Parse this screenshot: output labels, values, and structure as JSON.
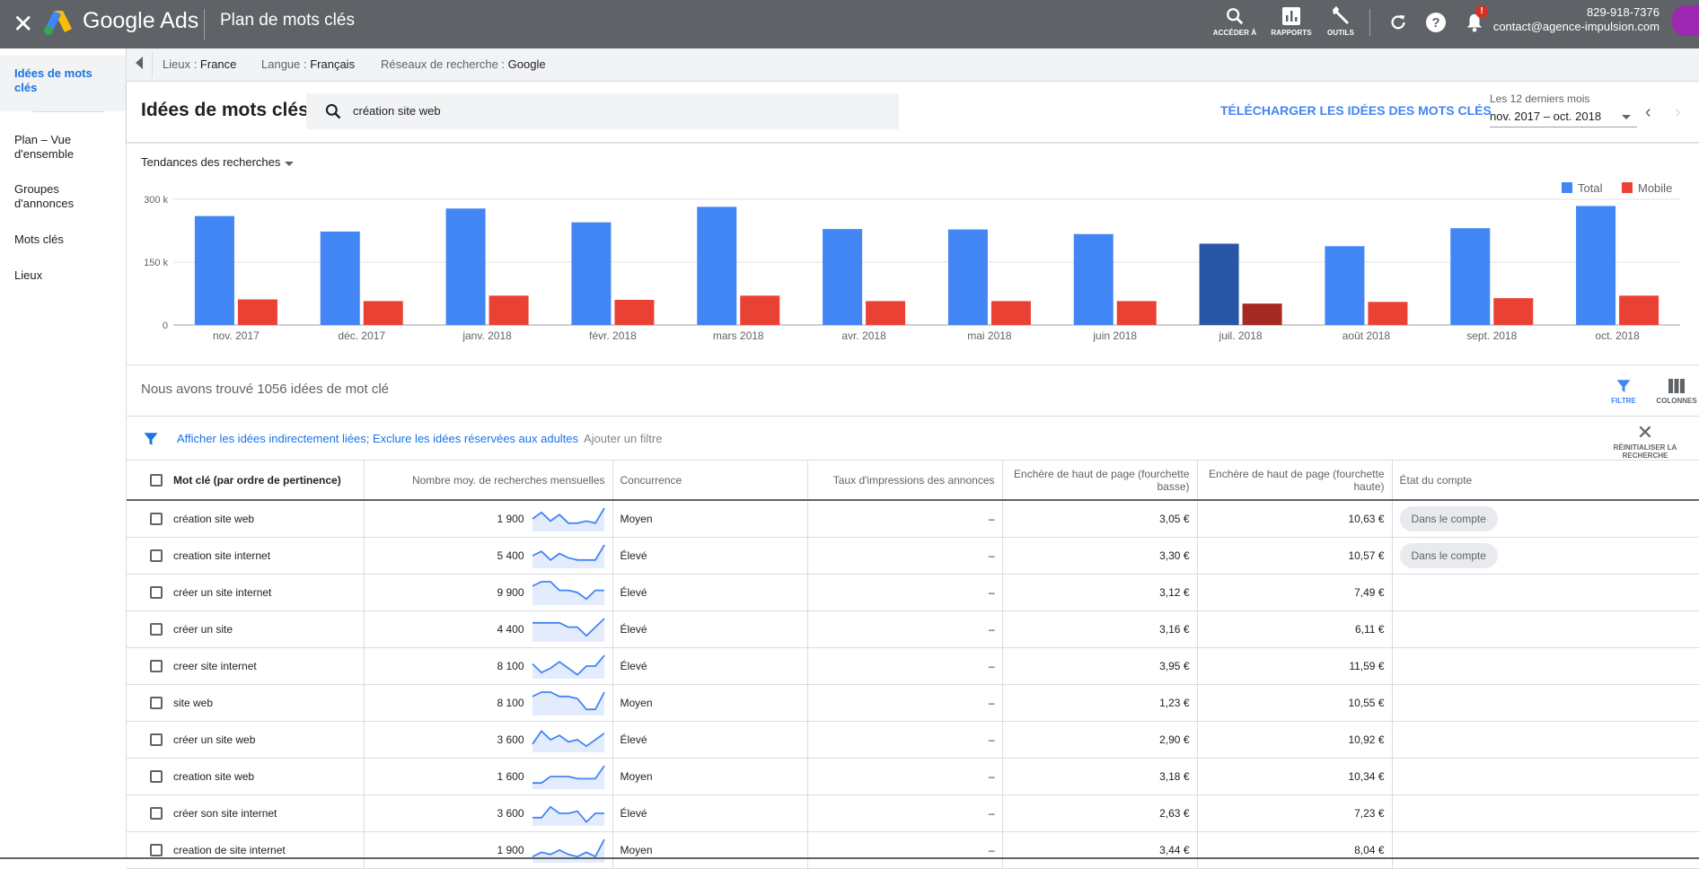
{
  "topbar": {
    "brand": "Google Ads",
    "title": "Plan de mots clés",
    "tools": [
      {
        "icon": "search-icon",
        "label": "ACCÉDER À"
      },
      {
        "icon": "bar-chart-icon",
        "label": "RAPPORTS"
      },
      {
        "icon": "wrench-icon",
        "label": "OUTILS"
      }
    ],
    "notification_badge": "!",
    "account_phone": "829-918-7376",
    "account_email": "contact@agence-impulsion.com"
  },
  "sidebar": {
    "items": [
      {
        "label": "Idées de mots clés",
        "active": true
      },
      {
        "label": "Plan – Vue d'ensemble",
        "active": false
      },
      {
        "label": "Groupes d'annonces",
        "active": false
      },
      {
        "label": "Mots clés",
        "active": false
      },
      {
        "label": "Lieux",
        "active": false
      }
    ]
  },
  "filters": {
    "locations_label": "Lieux : ",
    "locations_value": "France",
    "language_label": "Langue : ",
    "language_value": "Français",
    "network_label": "Réseaux de recherche : ",
    "network_value": "Google"
  },
  "header": {
    "title": "Idées de mots clés",
    "search_value": "création site web",
    "download_label": "TÉLÉCHARGER LES IDÉES DES MOTS CLÉS",
    "period_label": "Les 12 derniers mois",
    "period_value": "nov. 2017 – oct. 2018"
  },
  "chart_title_dropdown": "Tendances des recherches",
  "chart_data": {
    "type": "bar",
    "categories": [
      "nov. 2017",
      "déc. 2017",
      "janv. 2018",
      "févr. 2018",
      "mars 2018",
      "avr. 2018",
      "mai 2018",
      "juin 2018",
      "juil. 2018",
      "août 2018",
      "sept. 2018",
      "oct. 2018"
    ],
    "series": [
      {
        "name": "Total",
        "color": "#4285f4",
        "values": [
          260000,
          223000,
          278000,
          245000,
          282000,
          229000,
          228000,
          217000,
          194000,
          188000,
          231000,
          284000
        ]
      },
      {
        "name": "Mobile",
        "color": "#e94235",
        "values": [
          61000,
          57000,
          70000,
          60000,
          70000,
          57000,
          57000,
          57000,
          51000,
          55000,
          64000,
          70000
        ]
      }
    ],
    "highlight_index": 8,
    "highlight_colors": {
      "Total": "#2a56a8",
      "Mobile": "#a52a22"
    },
    "yticks": [
      "0",
      "150 k",
      "300 k"
    ],
    "ylim": [
      0,
      300000
    ],
    "legend_position": "top-right",
    "grid": true
  },
  "results": {
    "found_text": "Nous avons trouvé 1056 idées de mot clé",
    "filter_button": "FILTRE",
    "columns_button": "COLONNES",
    "active_filter": "Afficher les idées indirectement liées; Exclure les idées réservées aux adultes",
    "add_filter": "Ajouter un filtre",
    "reset_label": "RÉINITIALISER LA RECHERCHE"
  },
  "table": {
    "headers": {
      "keyword": "Mot clé (par ordre de pertinence)",
      "volume": "Nombre moy. de recherches mensuelles",
      "competition": "Concurrence",
      "impression_share": "Taux d'impressions des annonces",
      "bid_low": "Enchère de haut de page (fourchette basse)",
      "bid_high": "Enchère de haut de page (fourchette haute)",
      "status": "État du compte"
    },
    "rows": [
      {
        "keyword": "création site web",
        "volume": "1 900",
        "trend": [
          5,
          8,
          4,
          7,
          3,
          3,
          4,
          3,
          10
        ],
        "competition": "Moyen",
        "impression": "–",
        "low": "3,05 €",
        "high": "10,63 €",
        "status": "Dans le compte"
      },
      {
        "keyword": "creation site internet",
        "volume": "5 400",
        "trend": [
          5,
          7,
          3,
          6,
          4,
          3,
          3,
          3,
          10
        ],
        "competition": "Élevé",
        "impression": "–",
        "low": "3,30 €",
        "high": "10,57 €",
        "status": "Dans le compte"
      },
      {
        "keyword": "créer un site internet",
        "volume": "9 900",
        "trend": [
          8,
          10,
          10,
          6,
          6,
          5,
          2,
          6,
          6
        ],
        "competition": "Élevé",
        "impression": "–",
        "low": "3,12 €",
        "high": "7,49 €",
        "status": ""
      },
      {
        "keyword": "créer un site",
        "volume": "4 400",
        "trend": [
          8,
          8,
          8,
          8,
          6,
          6,
          2,
          6,
          10
        ],
        "competition": "Élevé",
        "impression": "–",
        "low": "3,16 €",
        "high": "6,11 €",
        "status": ""
      },
      {
        "keyword": "creer site internet",
        "volume": "8 100",
        "trend": [
          6,
          2,
          4,
          7,
          4,
          1,
          5,
          5,
          10
        ],
        "competition": "Élevé",
        "impression": "–",
        "low": "3,95 €",
        "high": "11,59 €",
        "status": ""
      },
      {
        "keyword": "site web",
        "volume": "8 100",
        "trend": [
          8,
          10,
          10,
          8,
          8,
          7,
          2,
          2,
          10
        ],
        "competition": "Moyen",
        "impression": "–",
        "low": "1,23 €",
        "high": "10,55 €",
        "status": ""
      },
      {
        "keyword": "créer un site web",
        "volume": "3 600",
        "trend": [
          3,
          9,
          5,
          7,
          4,
          5,
          2,
          5,
          8
        ],
        "competition": "Élevé",
        "impression": "–",
        "low": "2,90 €",
        "high": "10,92 €",
        "status": ""
      },
      {
        "keyword": "creation site web",
        "volume": "1 600",
        "trend": [
          2,
          2,
          5,
          5,
          5,
          4,
          4,
          4,
          10
        ],
        "competition": "Moyen",
        "impression": "–",
        "low": "3,18 €",
        "high": "10,34 €",
        "status": ""
      },
      {
        "keyword": "créer son site internet",
        "volume": "3 600",
        "trend": [
          3,
          3,
          8,
          5,
          5,
          6,
          1,
          5,
          5
        ],
        "competition": "Élevé",
        "impression": "–",
        "low": "2,63 €",
        "high": "7,23 €",
        "status": ""
      },
      {
        "keyword": "creation de site internet",
        "volume": "1 900",
        "trend": [
          2,
          4,
          3,
          5,
          3,
          2,
          4,
          2,
          10
        ],
        "competition": "Moyen",
        "impression": "–",
        "low": "3,44 €",
        "high": "8,04 €",
        "status": ""
      }
    ]
  },
  "colors": {
    "accent": "#4285f4",
    "topbar": "#5f6368",
    "total": "#4285f4",
    "mobile": "#e94235"
  }
}
